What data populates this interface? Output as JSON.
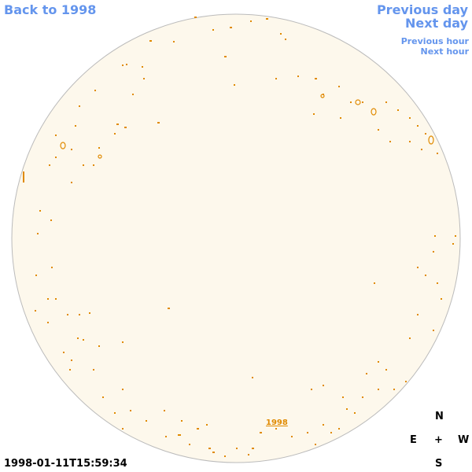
{
  "links": {
    "back": "Back to 1998",
    "previous_day": "Previous day",
    "next_day": "Next day",
    "previous_hour": "Previous hour",
    "next_hour": "Next hour"
  },
  "disk_label": "1998",
  "timestamp": "1998-01-11T15:59:34",
  "compass": {
    "north": "N",
    "east": "E",
    "center": "+",
    "west": "W",
    "south": "S"
  }
}
